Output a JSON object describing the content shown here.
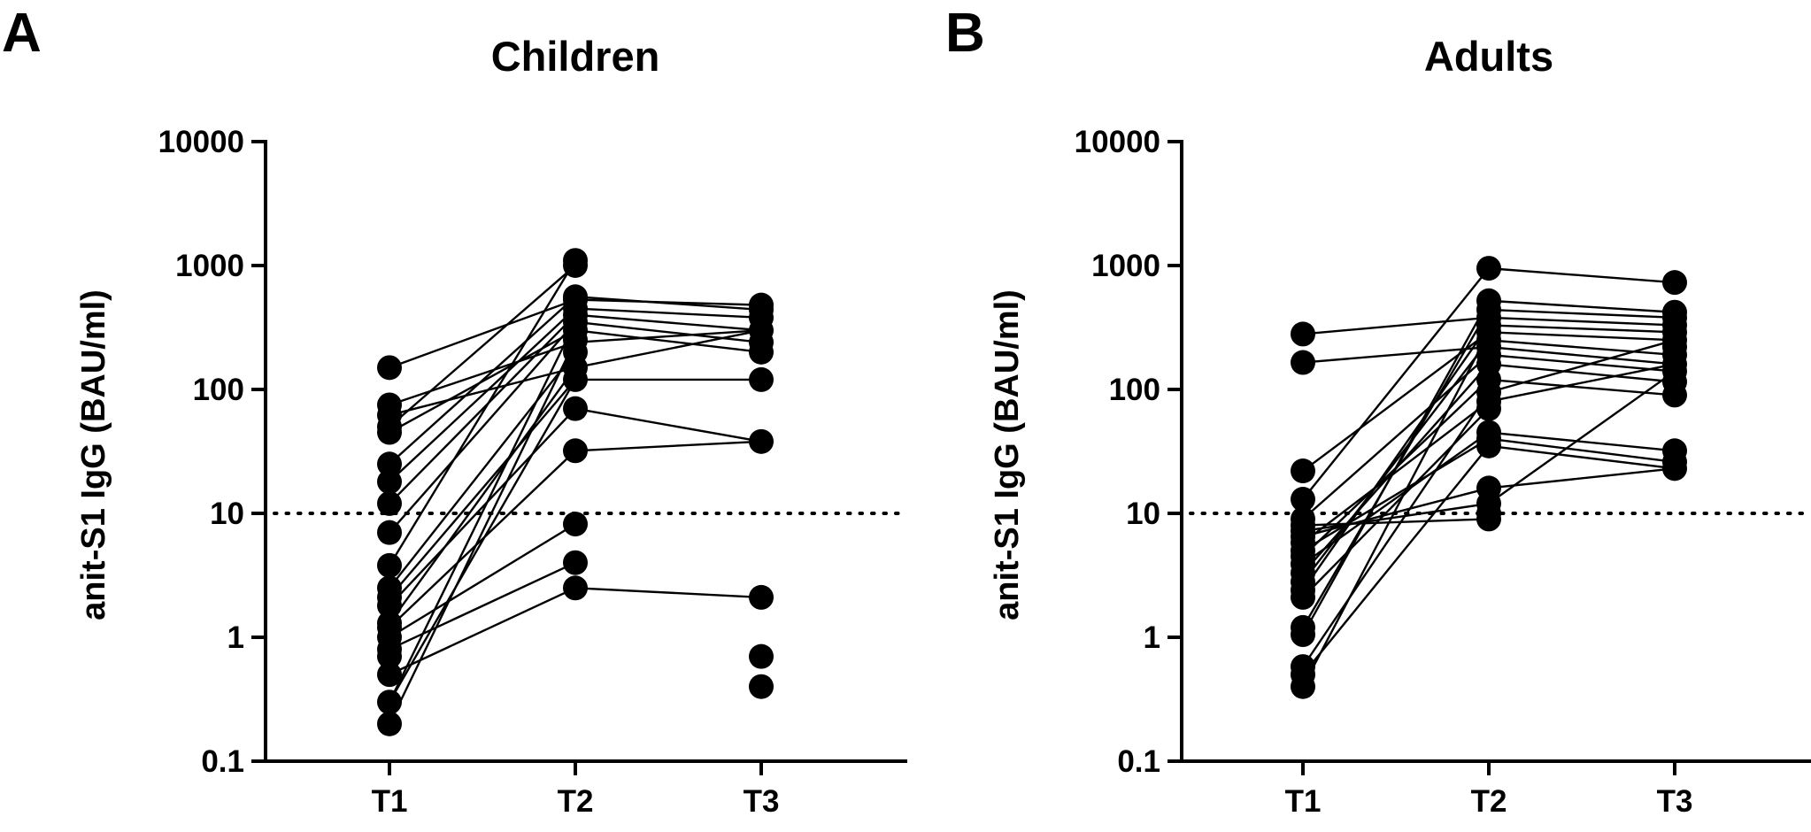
{
  "chart_data": [
    {
      "type": "scatter",
      "panel_letter": "A",
      "title": "Children",
      "ylabel": "anit-S1 IgG (BAU/ml)",
      "xlabel": "",
      "y_scale": "log",
      "ylim": [
        0.1,
        10000
      ],
      "yticks": [
        0.1,
        1,
        10,
        100,
        1000,
        10000
      ],
      "ytick_labels": [
        "0.1",
        "1",
        "10",
        "100",
        "1000",
        "10000"
      ],
      "categories": [
        "T1",
        "T2",
        "T3"
      ],
      "threshold": 10,
      "points": {
        "T1": [
          150,
          75,
          62,
          50,
          45,
          25,
          18,
          12,
          7,
          3.8,
          2.5,
          2.1,
          1.8,
          1.3,
          1.2,
          1.0,
          0.8,
          0.7,
          0.5,
          0.3,
          0.2
        ],
        "T2": [
          1100,
          1000,
          560,
          530,
          450,
          400,
          350,
          300,
          250,
          200,
          150,
          120,
          70,
          32,
          8.2,
          4.0,
          2.5
        ],
        "T3": [
          480,
          440,
          380,
          300,
          240,
          200,
          120,
          38,
          2.1,
          0.7,
          0.4
        ]
      },
      "pairs": [
        [
          150,
          530
        ],
        [
          75,
          240
        ],
        [
          62,
          150
        ],
        [
          50,
          1000
        ],
        [
          45,
          300
        ],
        [
          25,
          560
        ],
        [
          18,
          450
        ],
        [
          12,
          400
        ],
        [
          7,
          350
        ],
        [
          3.8,
          1100
        ],
        [
          2.5,
          200
        ],
        [
          2.1,
          120
        ],
        [
          1.8,
          70
        ],
        [
          1.3,
          150
        ],
        [
          1.2,
          32
        ],
        [
          1.0,
          8.2
        ],
        [
          0.8,
          4.0
        ],
        [
          0.5,
          2.5
        ],
        [
          0.3,
          120
        ],
        [
          0.3,
          350
        ],
        [
          0.2,
          250
        ]
      ],
      "pairs_t2_t3": [
        [
          530,
          480
        ],
        [
          560,
          440
        ],
        [
          450,
          380
        ],
        [
          400,
          300
        ],
        [
          350,
          240
        ],
        [
          300,
          200
        ],
        [
          240,
          300
        ],
        [
          150,
          300
        ],
        [
          120,
          120
        ],
        [
          70,
          38
        ],
        [
          32,
          38
        ],
        [
          2.5,
          2.1
        ]
      ]
    },
    {
      "type": "scatter",
      "panel_letter": "B",
      "title": "Adults",
      "ylabel": "anit-S1 IgG (BAU/ml)",
      "xlabel": "",
      "y_scale": "log",
      "ylim": [
        0.1,
        10000
      ],
      "yticks": [
        0.1,
        1,
        10,
        100,
        1000,
        10000
      ],
      "ytick_labels": [
        "0.1",
        "1",
        "10",
        "100",
        "1000",
        "10000"
      ],
      "categories": [
        "T1",
        "T2",
        "T3"
      ],
      "threshold": 10,
      "points": {
        "T1": [
          280,
          165,
          22,
          13,
          9.0,
          8.0,
          7.2,
          6.5,
          5.8,
          5.0,
          4.5,
          3.9,
          3.3,
          2.8,
          2.4,
          2.1,
          1.2,
          1.05,
          0.58,
          0.5,
          0.4
        ],
        "T2": [
          950,
          520,
          440,
          380,
          330,
          290,
          250,
          220,
          190,
          160,
          120,
          95,
          80,
          70,
          45,
          40,
          35,
          16,
          12,
          10,
          9
        ],
        "T3": [
          730,
          420,
          380,
          330,
          290,
          250,
          220,
          190,
          160,
          140,
          115,
          90,
          32,
          26,
          23
        ]
      },
      "pairs": [
        [
          280,
          380
        ],
        [
          165,
          220
        ],
        [
          22,
          290
        ],
        [
          13,
          950
        ],
        [
          9.0,
          190
        ],
        [
          8.0,
          9
        ],
        [
          7.2,
          12
        ],
        [
          6.5,
          16
        ],
        [
          5.8,
          80
        ],
        [
          5.0,
          40
        ],
        [
          4.5,
          120
        ],
        [
          3.9,
          45
        ],
        [
          3.3,
          160
        ],
        [
          2.8,
          250
        ],
        [
          2.4,
          330
        ],
        [
          2.1,
          70
        ],
        [
          1.2,
          440
        ],
        [
          1.05,
          520
        ],
        [
          0.58,
          95
        ],
        [
          0.5,
          35
        ],
        [
          0.4,
          290
        ]
      ],
      "pairs_t2_t3": [
        [
          950,
          730
        ],
        [
          520,
          420
        ],
        [
          440,
          380
        ],
        [
          380,
          330
        ],
        [
          330,
          290
        ],
        [
          290,
          250
        ],
        [
          250,
          190
        ],
        [
          220,
          160
        ],
        [
          190,
          140
        ],
        [
          160,
          115
        ],
        [
          120,
          90
        ],
        [
          95,
          250
        ],
        [
          80,
          160
        ],
        [
          45,
          32
        ],
        [
          40,
          26
        ],
        [
          35,
          23
        ],
        [
          12,
          140
        ],
        [
          16,
          23
        ]
      ]
    }
  ]
}
